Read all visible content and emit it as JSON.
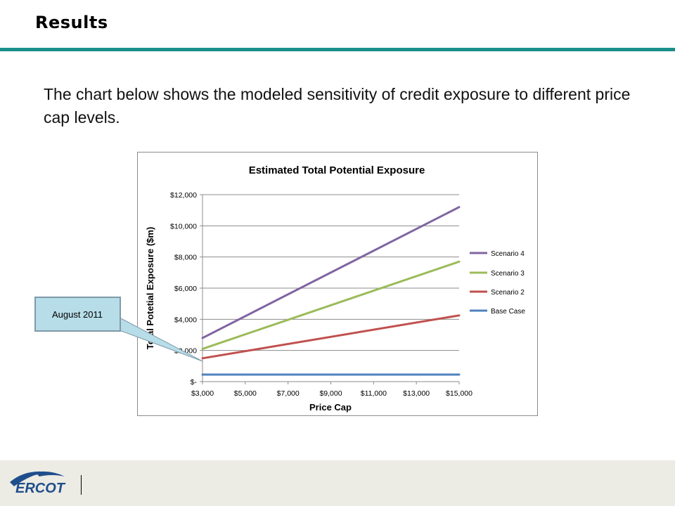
{
  "slide": {
    "title": "Results",
    "body": "The chart below shows the modeled sensitivity of credit exposure to different price cap levels.",
    "logo_text": "ERCOT"
  },
  "callout": {
    "text": "August 2011"
  },
  "colors": {
    "accent_rule": "#1b8f8a",
    "scenario4": "#8064a2",
    "scenario3": "#9bbb59",
    "scenario2": "#c0504d",
    "base_case": "#4f81bd",
    "callout_fill": "#b7dde8",
    "logo_blue": "#1f4e8c"
  },
  "chart_data": {
    "type": "line",
    "title": "Estimated Total Potential Exposure",
    "xlabel": "Price Cap",
    "ylabel": "Total Potetial Exposure ($m)",
    "xlim": [
      3000,
      15000
    ],
    "ylim": [
      0,
      12000
    ],
    "x_ticks": [
      3000,
      5000,
      7000,
      9000,
      11000,
      13000,
      15000
    ],
    "x_tick_labels": [
      "$3,000",
      "$5,000",
      "$7,000",
      "$9,000",
      "$11,000",
      "$13,000",
      "$15,000"
    ],
    "y_ticks": [
      0,
      2000,
      4000,
      6000,
      8000,
      10000,
      12000
    ],
    "y_tick_labels": [
      "$-",
      "$2,000",
      "$4,000",
      "$6,000",
      "$8,000",
      "$10,000",
      "$12,000"
    ],
    "grid": true,
    "legend_position": "right",
    "series": [
      {
        "name": "Scenario 4",
        "color": "#8064a2",
        "x": [
          3000,
          15000
        ],
        "y": [
          2800,
          11200
        ]
      },
      {
        "name": "Scenario 3",
        "color": "#9bbb59",
        "x": [
          3000,
          15000
        ],
        "y": [
          2100,
          7700
        ]
      },
      {
        "name": "Scenario 2",
        "color": "#c0504d",
        "x": [
          3000,
          15000
        ],
        "y": [
          1500,
          4250
        ]
      },
      {
        "name": "Base Case",
        "color": "#4f81bd",
        "x": [
          3000,
          15000
        ],
        "y": [
          450,
          450
        ]
      }
    ]
  }
}
